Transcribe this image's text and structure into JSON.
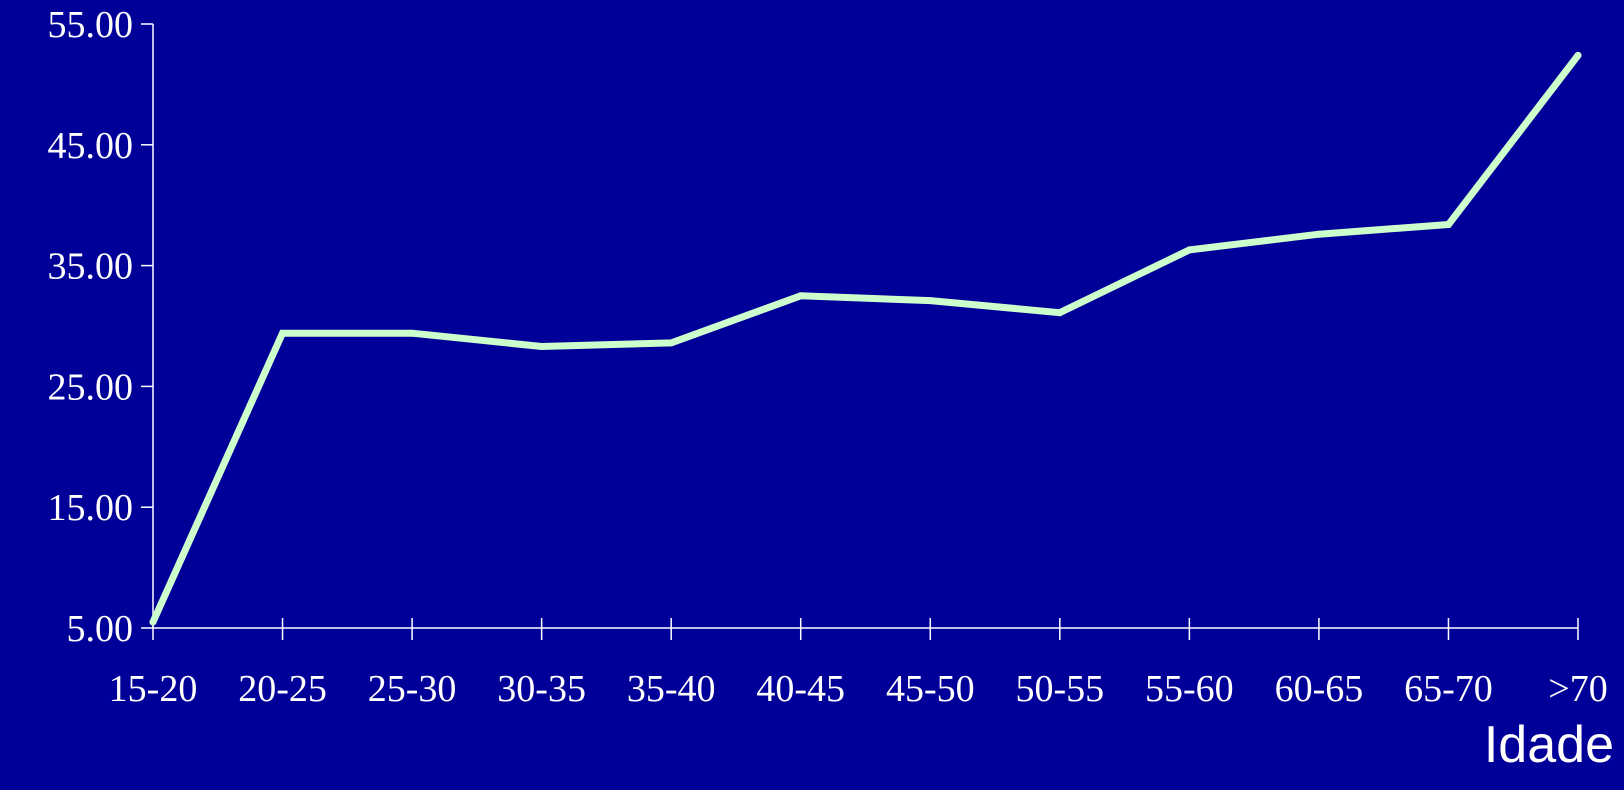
{
  "chart_data": {
    "type": "line",
    "title": "",
    "xlabel": "Idade",
    "ylabel": "",
    "categories": [
      "15-20",
      "20-25",
      "25-30",
      "30-35",
      "35-40",
      "40-45",
      "45-50",
      "50-55",
      "55-60",
      "60-65",
      "65-70",
      ">70"
    ],
    "series": [
      {
        "values": [
          5.5,
          29.4,
          29.4,
          28.3,
          28.6,
          32.5,
          32.1,
          31.1,
          36.3,
          37.6,
          38.4,
          52.4
        ]
      }
    ],
    "ylim": [
      5,
      55
    ],
    "yticks": [
      "5.00",
      "15.00",
      "25.00",
      "35.00",
      "45.00",
      "55.00"
    ],
    "grid": false,
    "legend": "none",
    "colors": {
      "background": "#000099",
      "line": "#ccffcc",
      "axis": "#ffffff",
      "text": "#ffffff"
    }
  }
}
